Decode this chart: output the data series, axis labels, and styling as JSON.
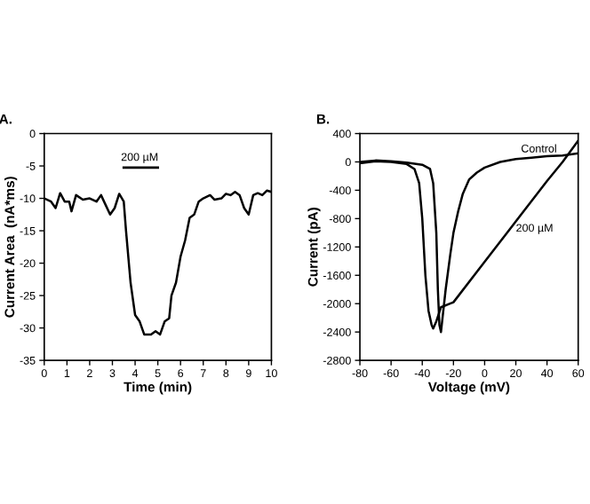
{
  "chart_data": [
    {
      "type": "line",
      "title": "A.",
      "xlabel": "Time (min)",
      "ylabel": "Current Area  (nA*ms)",
      "xlim": [
        0,
        10
      ],
      "xticks": [
        0,
        1,
        2,
        3,
        4,
        5,
        6,
        7,
        8,
        9,
        10
      ],
      "ylim": [
        -35,
        0
      ],
      "yticks": [
        -35,
        -30,
        -25,
        -20,
        -15,
        -10,
        -5,
        0
      ],
      "grid": false,
      "legend": false,
      "annotations": [
        "200 µM"
      ],
      "series": [
        {
          "color": "#000000",
          "x": [
            0,
            0.3,
            0.5,
            0.7,
            0.9,
            1.1,
            1.2,
            1.4,
            1.7,
            2.0,
            2.3,
            2.5,
            2.7,
            2.9,
            3.1,
            3.3,
            3.5,
            3.6,
            3.8,
            4.0,
            4.2,
            4.4,
            4.7,
            4.9,
            5.1,
            5.3,
            5.5,
            5.6,
            5.8,
            6.0,
            6.2,
            6.4,
            6.6,
            6.8,
            7.0,
            7.3,
            7.5,
            7.8,
            8.0,
            8.2,
            8.4,
            8.6,
            8.8,
            9.0,
            9.2,
            9.4,
            9.6,
            9.8,
            10
          ],
          "values": [
            -10,
            -10.5,
            -11.5,
            -9.2,
            -10.5,
            -10.5,
            -12,
            -9.5,
            -10.2,
            -10,
            -10.5,
            -9.5,
            -11,
            -12.5,
            -11.5,
            -9.3,
            -10.5,
            -15,
            -23,
            -28,
            -29,
            -31,
            -31,
            -30.5,
            -31,
            -29,
            -28.5,
            -25,
            -23,
            -19,
            -16.5,
            -13,
            -12.5,
            -10.5,
            -10,
            -9.5,
            -10.2,
            -10,
            -9.3,
            -9.5,
            -9,
            -9.5,
            -11.5,
            -12.5,
            -9.5,
            -9.2,
            -9.5,
            -8.8,
            -9
          ]
        }
      ]
    },
    {
      "type": "line",
      "title": "B.",
      "xlabel": "Voltage (mV)",
      "ylabel": "Current (pA)",
      "xlim": [
        -80,
        60
      ],
      "xticks": [
        -80,
        -60,
        -40,
        -20,
        0,
        20,
        40,
        60
      ],
      "ylim": [
        -2800,
        400
      ],
      "yticks": [
        -2800,
        -2400,
        -2000,
        -1600,
        -1200,
        -800,
        -400,
        0,
        400
      ],
      "grid": false,
      "legend": false,
      "series": [
        {
          "name": "Control",
          "color": "#000000",
          "x": [
            -80,
            -70,
            -60,
            -50,
            -40,
            -35,
            -33,
            -31,
            -30,
            -29,
            -28,
            -27,
            -25,
            -22,
            -20,
            -17,
            -14,
            -10,
            -5,
            0,
            10,
            20,
            30,
            40,
            50,
            60
          ],
          "values": [
            0,
            20,
            10,
            -10,
            -40,
            -100,
            -300,
            -1000,
            -1800,
            -2300,
            -2400,
            -2200,
            -1800,
            -1300,
            -1000,
            -700,
            -450,
            -250,
            -150,
            -80,
            0,
            40,
            60,
            80,
            90,
            120
          ]
        },
        {
          "name": "200 µM",
          "color": "#000000",
          "x": [
            -80,
            -70,
            -60,
            -50,
            -45,
            -42,
            -40,
            -38,
            -36,
            -34,
            -33,
            -31,
            -28,
            -20,
            0,
            20,
            40,
            50,
            60
          ],
          "values": [
            -20,
            10,
            0,
            -30,
            -100,
            -300,
            -800,
            -1600,
            -2100,
            -2300,
            -2350,
            -2250,
            -2050,
            -1980,
            -1410,
            -840,
            -270,
            0,
            300
          ]
        }
      ]
    }
  ]
}
